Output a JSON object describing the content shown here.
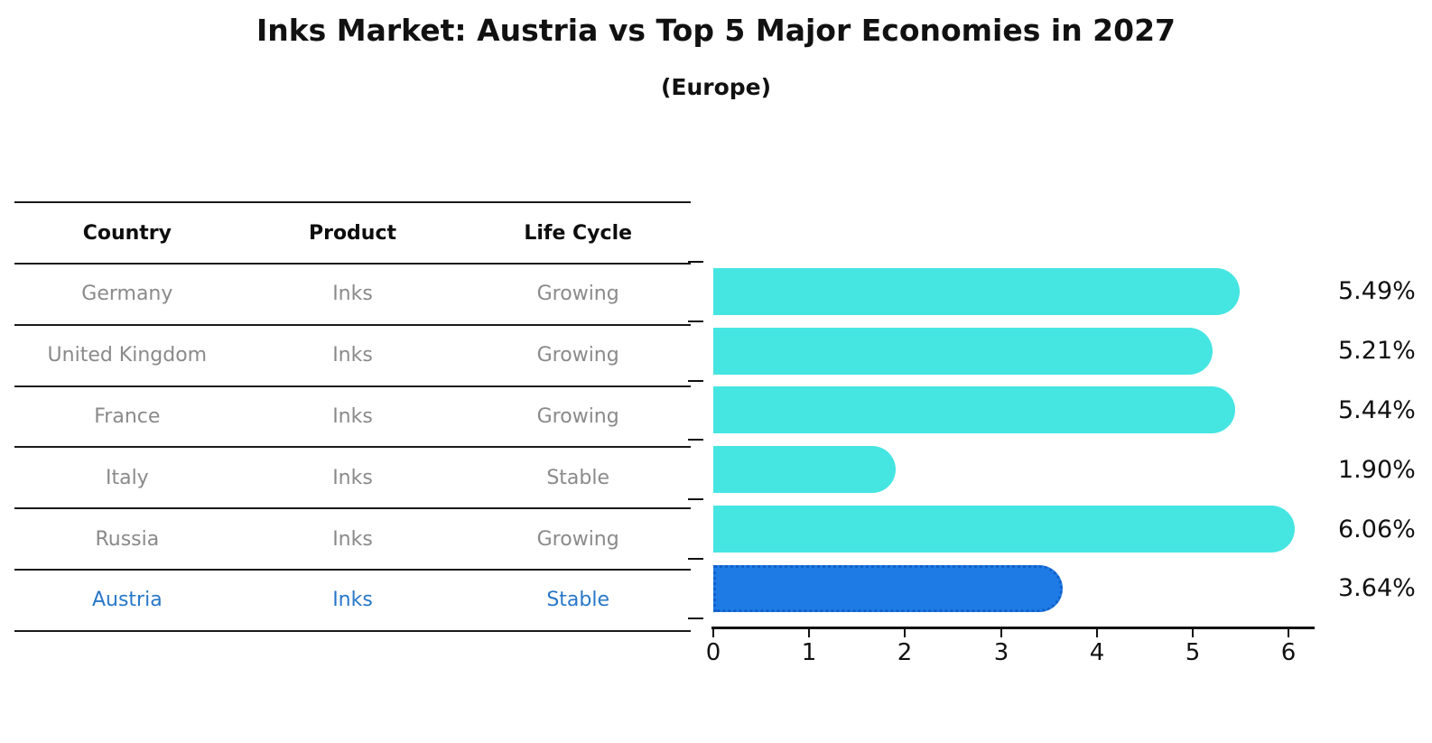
{
  "title": "Inks Market: Austria vs Top 5 Major Economies in 2027",
  "subtitle": "(Europe)",
  "table": {
    "headers": [
      "Country",
      "Product",
      "Life Cycle"
    ],
    "rows": [
      {
        "country": "Germany",
        "product": "Inks",
        "life_cycle": "Growing"
      },
      {
        "country": "United Kingdom",
        "product": "Inks",
        "life_cycle": "Growing"
      },
      {
        "country": "France",
        "product": "Inks",
        "life_cycle": "Growing"
      },
      {
        "country": "Italy",
        "product": "Inks",
        "life_cycle": "Stable"
      },
      {
        "country": "Russia",
        "product": "Inks",
        "life_cycle": "Growing"
      },
      {
        "country": "Austria",
        "product": "Inks",
        "life_cycle": "Stable"
      }
    ],
    "highlight_row": "Austria"
  },
  "chart_data": {
    "type": "bar",
    "orientation": "horizontal",
    "categories": [
      "Germany",
      "United Kingdom",
      "France",
      "Italy",
      "Russia",
      "Austria"
    ],
    "values": [
      5.49,
      5.21,
      5.44,
      1.9,
      6.06,
      3.64
    ],
    "value_labels": [
      "5.49%",
      "5.21%",
      "5.44%",
      "1.90%",
      "6.06%",
      "3.64%"
    ],
    "xlim": [
      0,
      6.3
    ],
    "xticks": [
      "0",
      "1",
      "2",
      "3",
      "4",
      "5",
      "6"
    ],
    "grid": false,
    "legend": false,
    "bar_color": "#45E5E2",
    "highlight_color": "#1E7BE5",
    "highlight_border_color": "#1261c9",
    "highlight_index": 5,
    "text_color_muted": "#8a8a8a",
    "highlight_text_color": "#2878C8"
  }
}
